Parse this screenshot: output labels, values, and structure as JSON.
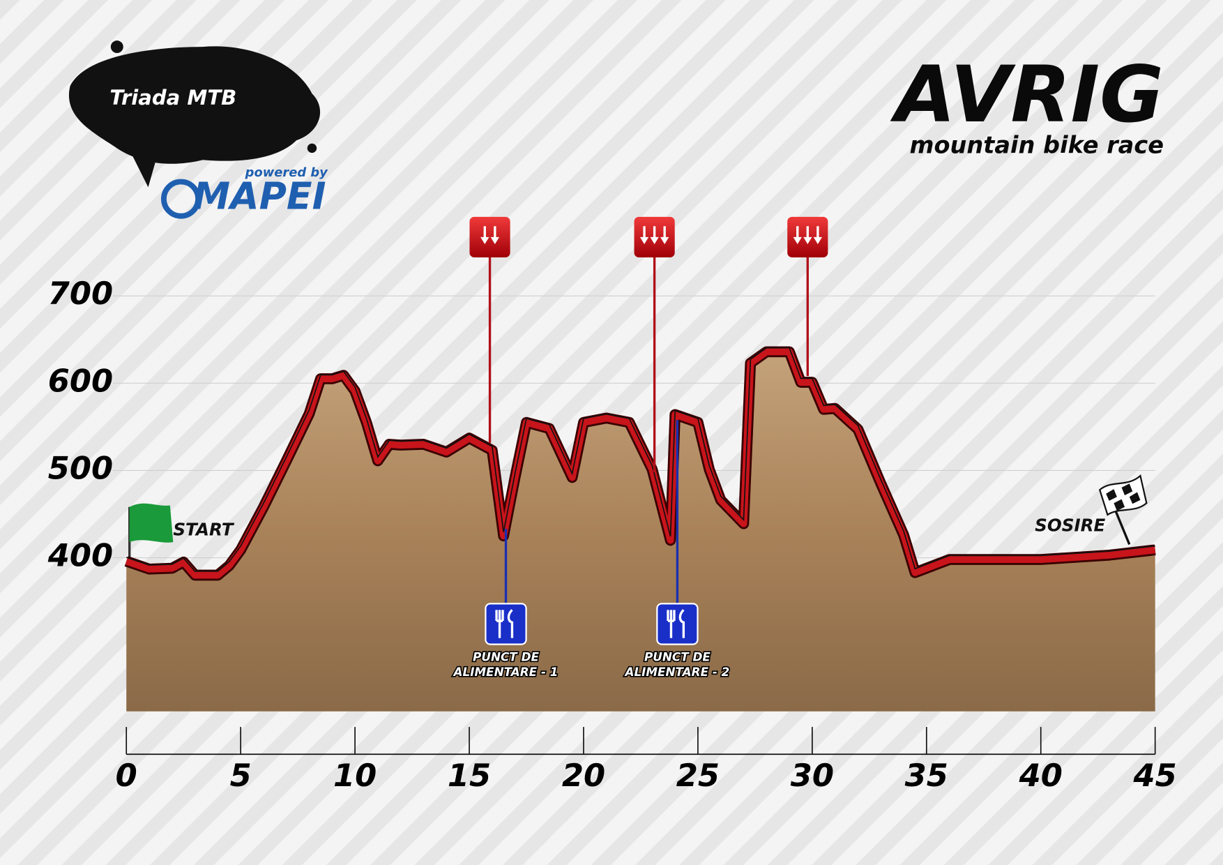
{
  "chart_data": {
    "type": "area",
    "title": "AVRIG",
    "subtitle": "mountain bike race",
    "logo": {
      "name": "Triada MTB",
      "tagline": "powered by",
      "sponsor": "MAPEI"
    },
    "x": [
      0,
      1,
      2,
      2.5,
      3,
      4,
      4.5,
      5,
      6,
      7,
      8,
      8.5,
      9,
      9.5,
      10,
      10.5,
      11,
      11.5,
      12,
      13,
      14,
      15,
      16,
      16.5,
      17,
      17.5,
      18.5,
      19.5,
      20,
      21,
      22,
      23,
      23.8,
      24,
      25,
      25.5,
      26,
      27,
      27.3,
      28,
      29,
      29.5,
      30,
      30.5,
      31,
      32,
      33,
      34,
      34.5,
      35,
      36,
      40,
      43,
      45
    ],
    "series": [
      {
        "color": "#c8141b",
        "values": [
          396,
          387,
          388,
          395,
          380,
          380,
          391,
          409,
          458,
          511,
          565,
          605,
          605,
          609,
          591,
          555,
          511,
          530,
          529,
          530,
          521,
          537,
          523,
          425,
          492,
          555,
          548,
          492,
          555,
          560,
          555,
          501,
          420,
          564,
          555,
          501,
          466,
          439,
          623,
          636,
          636,
          601,
          601,
          570,
          571,
          547,
          485,
          426,
          383,
          388,
          398,
          398,
          403,
          409
        ]
      }
    ],
    "xlim": [
      0,
      45
    ],
    "xticks": [
      0,
      5,
      10,
      15,
      20,
      25,
      30,
      35,
      40,
      45
    ],
    "ylim": [
      224,
      770
    ],
    "yticks": [
      400,
      500,
      600,
      700
    ],
    "grid": true,
    "start_label": "START",
    "finish_label": "SOSIRE",
    "descents": [
      {
        "x": 15.9,
        "arrows": 2
      },
      {
        "x": 23.1,
        "arrows": 3
      },
      {
        "x": 29.8,
        "arrows": 3
      }
    ],
    "feed_zones": [
      {
        "x": 16.6,
        "label": [
          "PUNCT DE",
          "ALIMENTARE - 1"
        ]
      },
      {
        "x": 24.1,
        "label": [
          "PUNCT DE",
          "ALIMENTARE - 2"
        ]
      }
    ]
  }
}
